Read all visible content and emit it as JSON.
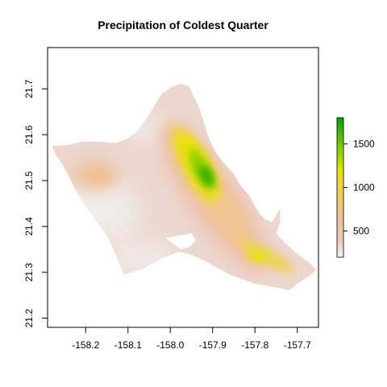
{
  "chart_data": {
    "type": "heatmap",
    "title": "Precipitation of Coldest Quarter",
    "xlabel": "",
    "ylabel": "",
    "xlim": [
      -158.29,
      -157.65
    ],
    "ylim": [
      21.18,
      21.79
    ],
    "x_ticks": [
      -158.2,
      -158.1,
      -158.0,
      -157.9,
      -157.8,
      -157.7
    ],
    "x_tick_labels": [
      "-158.2",
      "-158.1",
      "-158.0",
      "-157.9",
      "-157.8",
      "-157.7"
    ],
    "y_ticks": [
      21.2,
      21.3,
      21.4,
      21.5,
      21.6,
      21.7
    ],
    "y_tick_labels": [
      "21.2",
      "21.3",
      "21.4",
      "21.5",
      "21.6",
      "21.7"
    ],
    "legend": {
      "placement": "right",
      "range": [
        200,
        1800
      ],
      "ticks": [
        500,
        1000,
        1500
      ],
      "tick_labels": [
        "500",
        "1000",
        "1500"
      ],
      "colors": [
        "#f2f2f2",
        "#ebcbbd",
        "#f0c096",
        "#eed24b",
        "#e5e500",
        "#70c800",
        "#00a600"
      ]
    },
    "grid": false,
    "island_outline_lonlat": [
      [
        -158.28,
        21.575
      ],
      [
        -158.24,
        21.578
      ],
      [
        -158.21,
        21.585
      ],
      [
        -158.17,
        21.585
      ],
      [
        -158.13,
        21.582
      ],
      [
        -158.105,
        21.59
      ],
      [
        -158.08,
        21.605
      ],
      [
        -158.06,
        21.63
      ],
      [
        -158.04,
        21.66
      ],
      [
        -158.02,
        21.69
      ],
      [
        -157.995,
        21.705
      ],
      [
        -157.975,
        21.712
      ],
      [
        -157.955,
        21.705
      ],
      [
        -157.945,
        21.685
      ],
      [
        -157.93,
        21.655
      ],
      [
        -157.92,
        21.625
      ],
      [
        -157.91,
        21.595
      ],
      [
        -157.895,
        21.565
      ],
      [
        -157.875,
        21.54
      ],
      [
        -157.85,
        21.515
      ],
      [
        -157.835,
        21.49
      ],
      [
        -157.815,
        21.47
      ],
      [
        -157.8,
        21.445
      ],
      [
        -157.79,
        21.428
      ],
      [
        -157.775,
        21.415
      ],
      [
        -157.76,
        21.41
      ],
      [
        -157.75,
        21.425
      ],
      [
        -157.74,
        21.44
      ],
      [
        -157.74,
        21.41
      ],
      [
        -157.75,
        21.385
      ],
      [
        -157.73,
        21.365
      ],
      [
        -157.7,
        21.34
      ],
      [
        -157.67,
        21.32
      ],
      [
        -157.655,
        21.305
      ],
      [
        -157.675,
        21.29
      ],
      [
        -157.7,
        21.275
      ],
      [
        -157.72,
        21.26
      ],
      [
        -157.74,
        21.265
      ],
      [
        -157.77,
        21.27
      ],
      [
        -157.8,
        21.275
      ],
      [
        -157.83,
        21.285
      ],
      [
        -157.86,
        21.295
      ],
      [
        -157.89,
        21.31
      ],
      [
        -157.92,
        21.325
      ],
      [
        -157.95,
        21.338
      ],
      [
        -157.98,
        21.345
      ],
      [
        -158.02,
        21.33
      ],
      [
        -158.06,
        21.31
      ],
      [
        -158.09,
        21.3
      ],
      [
        -158.11,
        21.295
      ],
      [
        -158.12,
        21.32
      ],
      [
        -158.135,
        21.35
      ],
      [
        -158.15,
        21.38
      ],
      [
        -158.18,
        21.42
      ],
      [
        -158.205,
        21.45
      ],
      [
        -158.225,
        21.48
      ],
      [
        -158.24,
        21.51
      ],
      [
        -158.255,
        21.535
      ],
      [
        -158.27,
        21.555
      ]
    ],
    "harbor_lonlat": [
      [
        -158.01,
        21.375
      ],
      [
        -157.98,
        21.38
      ],
      [
        -157.95,
        21.385
      ],
      [
        -157.94,
        21.37
      ],
      [
        -157.955,
        21.355
      ],
      [
        -157.975,
        21.35
      ],
      [
        -157.99,
        21.36
      ]
    ],
    "value_peaks": [
      {
        "lon": -157.92,
        "lat": 21.52,
        "value": 1750
      },
      {
        "lon": -157.945,
        "lat": 21.575,
        "value": 1300
      },
      {
        "lon": -157.88,
        "lat": 21.445,
        "value": 950
      },
      {
        "lon": -157.8,
        "lat": 21.32,
        "value": 1000
      },
      {
        "lon": -158.16,
        "lat": 21.51,
        "value": 600
      }
    ]
  }
}
